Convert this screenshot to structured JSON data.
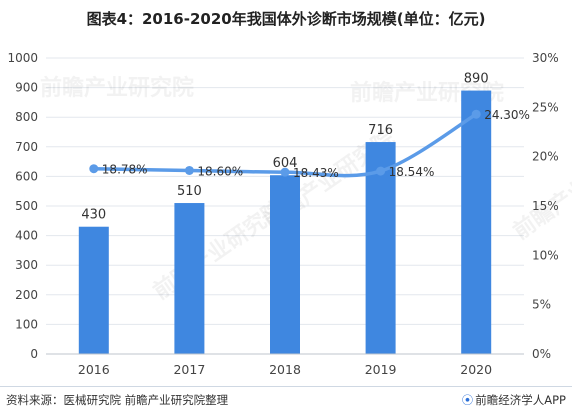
{
  "title": "图表4：2016-2020年我国体外诊断市场规模(单位：亿元)",
  "source_text": "资料来源：医械研究院 前瞻产业研究院整理",
  "brand_text": "前瞻经济学人APP",
  "watermark_text": "前瞻产业研究院",
  "colors": {
    "bar": "#3f87e0",
    "line": "#5b9be8",
    "grid": "#e3e7ed",
    "axis_text": "#444444"
  },
  "chart_data": {
    "type": "bar+line",
    "categories": [
      "2016",
      "2017",
      "2018",
      "2019",
      "2020"
    ],
    "series": [
      {
        "type": "bar",
        "axis": "left",
        "values": [
          430,
          510,
          604,
          716,
          890
        ],
        "labels": [
          "430",
          "510",
          "604",
          "716",
          "890"
        ]
      },
      {
        "type": "line",
        "axis": "right",
        "values": [
          18.78,
          18.6,
          18.43,
          18.54,
          24.3
        ],
        "labels": [
          "18.78%",
          "18.60%",
          "18.43%",
          "18.54%",
          "24.30%"
        ]
      }
    ],
    "y_left": {
      "min": 0,
      "max": 1000,
      "ticks": [
        0,
        100,
        200,
        300,
        400,
        500,
        600,
        700,
        800,
        900,
        1000
      ]
    },
    "y_right": {
      "min": 0,
      "max": 30,
      "ticks": [
        "0%",
        "5%",
        "10%",
        "15%",
        "20%",
        "25%",
        "30%"
      ]
    },
    "grid": true,
    "legend": "none"
  }
}
